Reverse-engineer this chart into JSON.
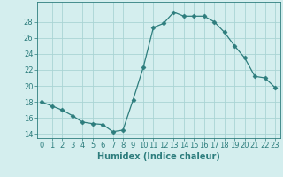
{
  "x": [
    0,
    1,
    2,
    3,
    4,
    5,
    6,
    7,
    8,
    9,
    10,
    11,
    12,
    13,
    14,
    15,
    16,
    17,
    18,
    19,
    20,
    21,
    22,
    23
  ],
  "y": [
    18.0,
    17.5,
    17.0,
    16.3,
    15.5,
    15.3,
    15.2,
    14.3,
    14.5,
    18.3,
    22.3,
    27.3,
    27.8,
    29.2,
    28.7,
    28.7,
    28.7,
    28.0,
    26.7,
    25.0,
    23.5,
    21.2,
    21.0,
    19.8
  ],
  "line_color": "#2d7d7d",
  "marker": "D",
  "marker_size": 2.5,
  "bg_color": "#d4eeee",
  "grid_color": "#aad4d4",
  "xlabel": "Humidex (Indice chaleur)",
  "ylim": [
    13.5,
    30.5
  ],
  "xlim": [
    -0.5,
    23.5
  ],
  "yticks": [
    14,
    16,
    18,
    20,
    22,
    24,
    26,
    28
  ],
  "xticks": [
    0,
    1,
    2,
    3,
    4,
    5,
    6,
    7,
    8,
    9,
    10,
    11,
    12,
    13,
    14,
    15,
    16,
    17,
    18,
    19,
    20,
    21,
    22,
    23
  ],
  "tick_color": "#2d7d7d",
  "label_color": "#2d7d7d",
  "font_size_label": 7,
  "font_size_tick": 6
}
